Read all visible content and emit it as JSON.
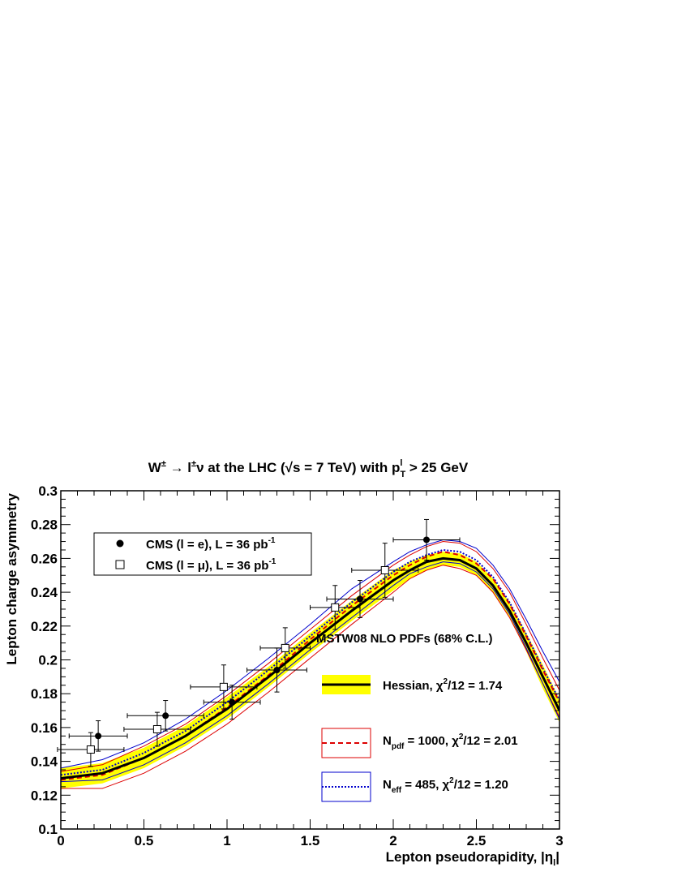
{
  "chart_data": {
    "type": "line",
    "title": {
      "part1": "W",
      "sup1": "±",
      "part2": " → l",
      "sup2": "±",
      "part3": "ν at the LHC (",
      "sqrt": "√",
      "part4": "s = 7 TeV) with p",
      "sup3": "l",
      "sub3": "T",
      "part5": " > 25 GeV"
    },
    "xlabel": {
      "main": "Lepton pseudorapidity, |η",
      "sub": "l",
      "end": "|"
    },
    "ylabel": "Lepton charge asymmetry",
    "xlim": [
      0,
      3
    ],
    "ylim": [
      0.1,
      0.3
    ],
    "x_ticks": [
      "0",
      "0.5",
      "1",
      "1.5",
      "2",
      "2.5",
      "3"
    ],
    "y_ticks": [
      "0.1",
      "0.12",
      "0.14",
      "0.16",
      "0.18",
      "0.2",
      "0.22",
      "0.24",
      "0.26",
      "0.28",
      "0.3"
    ],
    "colors": {
      "band": "#ffff00",
      "hessian": "#000000",
      "npdf": "#dd0000",
      "neff": "#0000cc",
      "data": "#000000"
    },
    "legend_data": {
      "position": "top-left",
      "entries": [
        {
          "text": "CMS (l = e), L = 36 pb",
          "sup": "-1",
          "marker": "filled-circle"
        },
        {
          "text": "CMS (l = μ), L = 36 pb",
          "sup": "-1",
          "marker": "open-square"
        }
      ]
    },
    "legend_pdf": {
      "position": "bottom-right",
      "header": "MSTW08 NLO PDFs (68% C.L.)",
      "hessian": {
        "pre": "Hessian,  χ",
        "sup": "2",
        "post": "/12 = 1.74"
      },
      "npdf": {
        "pre": "N",
        "sub": "pdf",
        "mid": " = 1000,  χ",
        "sup": "2",
        "post": "/12 = 2.01"
      },
      "neff": {
        "pre": "N",
        "sub": "eff",
        "mid": " = 485,  χ",
        "sup": "2",
        "post": "/12 = 1.20"
      }
    },
    "x": [
      0,
      0.25,
      0.5,
      0.75,
      1.0,
      1.25,
      1.5,
      1.75,
      2.0,
      2.1,
      2.2,
      2.3,
      2.4,
      2.5,
      2.6,
      2.7,
      2.8,
      2.9,
      3.0
    ],
    "series": [
      {
        "key": "hessian",
        "central": [
          0.13,
          0.133,
          0.142,
          0.155,
          0.171,
          0.19,
          0.21,
          0.229,
          0.247,
          0.253,
          0.258,
          0.26,
          0.259,
          0.254,
          0.244,
          0.229,
          0.21,
          0.19,
          0.17
        ],
        "upper": [
          0.136,
          0.139,
          0.148,
          0.161,
          0.178,
          0.196,
          0.216,
          0.235,
          0.253,
          0.258,
          0.262,
          0.264,
          0.263,
          0.258,
          0.248,
          0.234,
          0.216,
          0.197,
          0.177
        ],
        "lower": [
          0.124,
          0.127,
          0.136,
          0.149,
          0.165,
          0.184,
          0.204,
          0.223,
          0.241,
          0.248,
          0.253,
          0.256,
          0.255,
          0.25,
          0.24,
          0.225,
          0.205,
          0.183,
          0.163
        ]
      },
      {
        "key": "npdf",
        "central": [
          0.129,
          0.132,
          0.142,
          0.155,
          0.172,
          0.191,
          0.212,
          0.232,
          0.25,
          0.256,
          0.261,
          0.264,
          0.262,
          0.257,
          0.248,
          0.233,
          0.214,
          0.194,
          0.175
        ],
        "upper": [
          0.134,
          0.138,
          0.149,
          0.162,
          0.179,
          0.198,
          0.218,
          0.238,
          0.256,
          0.262,
          0.267,
          0.27,
          0.269,
          0.264,
          0.254,
          0.24,
          0.221,
          0.201,
          0.182
        ],
        "lower": [
          0.124,
          0.124,
          0.133,
          0.146,
          0.162,
          0.181,
          0.201,
          0.221,
          0.24,
          0.248,
          0.253,
          0.256,
          0.254,
          0.25,
          0.24,
          0.225,
          0.206,
          0.186,
          0.166
        ]
      },
      {
        "key": "neff",
        "central": [
          0.132,
          0.135,
          0.145,
          0.158,
          0.175,
          0.194,
          0.214,
          0.234,
          0.252,
          0.258,
          0.262,
          0.265,
          0.264,
          0.259,
          0.249,
          0.234,
          0.215,
          0.195,
          0.176
        ],
        "upper": [
          0.136,
          0.141,
          0.151,
          0.165,
          0.182,
          0.201,
          0.221,
          0.242,
          0.258,
          0.264,
          0.268,
          0.271,
          0.27,
          0.266,
          0.256,
          0.242,
          0.224,
          0.205,
          0.187
        ],
        "lower": [
          0.128,
          0.129,
          0.138,
          0.151,
          0.167,
          0.186,
          0.206,
          0.225,
          0.244,
          0.251,
          0.255,
          0.258,
          0.257,
          0.252,
          0.242,
          0.227,
          0.207,
          0.186,
          0.165
        ]
      }
    ],
    "data_e": [
      {
        "x": 0.225,
        "y": 0.155,
        "xerr": 0.175,
        "yerr": 0.009
      },
      {
        "x": 0.63,
        "y": 0.167,
        "xerr": 0.23,
        "yerr": 0.009
      },
      {
        "x": 1.03,
        "y": 0.175,
        "xerr": 0.17,
        "yerr": 0.01
      },
      {
        "x": 1.3,
        "y": 0.194,
        "xerr": 0.18,
        "yerr": 0.013
      },
      {
        "x": 1.8,
        "y": 0.236,
        "xerr": 0.2,
        "yerr": 0.011
      },
      {
        "x": 2.2,
        "y": 0.271,
        "xerr": 0.2,
        "yerr": 0.012
      }
    ],
    "data_mu": [
      {
        "x": 0.18,
        "y": 0.147,
        "xerr": 0.2,
        "yerr": 0.01
      },
      {
        "x": 0.58,
        "y": 0.159,
        "xerr": 0.2,
        "yerr": 0.01
      },
      {
        "x": 0.98,
        "y": 0.184,
        "xerr": 0.2,
        "yerr": 0.013
      },
      {
        "x": 1.35,
        "y": 0.207,
        "xerr": 0.15,
        "yerr": 0.012
      },
      {
        "x": 1.65,
        "y": 0.231,
        "xerr": 0.15,
        "yerr": 0.013
      },
      {
        "x": 1.95,
        "y": 0.253,
        "xerr": 0.2,
        "yerr": 0.016
      }
    ]
  }
}
